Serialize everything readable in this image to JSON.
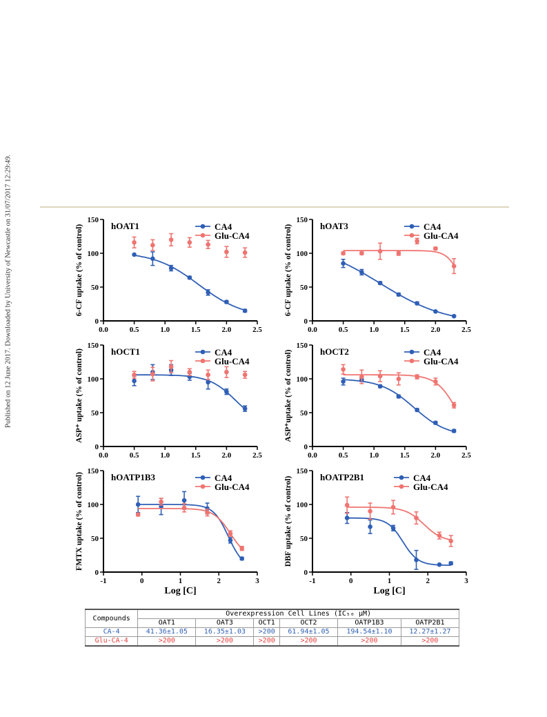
{
  "side_note": "Published on 12 June 2017. Downloaded by University of Newcastle on 31/07/2017 12:29:49.",
  "colors": {
    "ca4": "#2f5fb5",
    "glu": "#ef7470",
    "glu_text": "#e8423f",
    "divider": "#dcd6bd"
  },
  "chart_data": [
    {
      "type": "scatter",
      "title": "hOAT1",
      "ylabel": "6-CF uptake (% of control)",
      "xlabel": "",
      "xlim": [
        0,
        2.5
      ],
      "ylim": [
        0,
        150
      ],
      "xticks": [
        "0.0",
        "0.5",
        "1.0",
        "1.5",
        "2.0",
        "2.5"
      ],
      "yticks": [
        "0",
        "50",
        "100",
        "150"
      ],
      "legend_position": "top-right",
      "series": [
        {
          "name": "CA4",
          "x": [
            0.5,
            0.8,
            1.1,
            1.4,
            1.7,
            2.0,
            2.3
          ],
          "y": [
            98,
            92,
            78,
            64,
            42,
            28,
            15
          ],
          "err": [
            0,
            10,
            4,
            2,
            4,
            2,
            2
          ],
          "curve": true
        },
        {
          "name": "Glu-CA4",
          "x": [
            0.5,
            0.8,
            1.1,
            1.4,
            1.7,
            2.0,
            2.3
          ],
          "y": [
            116,
            112,
            120,
            116,
            113,
            102,
            101
          ],
          "err": [
            8,
            8,
            9,
            7,
            6,
            8,
            7
          ],
          "curve": false
        }
      ]
    },
    {
      "type": "scatter",
      "title": "hOAT3",
      "ylabel": "6-CF uptake (% of control)",
      "xlabel": "",
      "xlim": [
        0,
        2.5
      ],
      "ylim": [
        0,
        150
      ],
      "xticks": [
        "0.0",
        "0.5",
        "1.0",
        "1.5",
        "2.0",
        "2.5"
      ],
      "yticks": [
        "0",
        "50",
        "100",
        "150"
      ],
      "legend_position": "top-right",
      "series": [
        {
          "name": "CA4",
          "x": [
            0.5,
            0.8,
            1.1,
            1.4,
            1.7,
            2.0,
            2.3
          ],
          "y": [
            85,
            72,
            56,
            39,
            26,
            14,
            7
          ],
          "err": [
            6,
            4,
            2,
            2,
            2,
            1,
            1
          ],
          "curve": true
        },
        {
          "name": "Glu-CA4",
          "x": [
            0.5,
            0.8,
            1.1,
            1.4,
            1.7,
            2.0,
            2.3
          ],
          "y": [
            100,
            100,
            103,
            100,
            118,
            107,
            81
          ],
          "err": [
            2,
            2,
            12,
            3,
            4,
            2,
            11
          ],
          "curve": true
        }
      ]
    },
    {
      "type": "scatter",
      "title": "hOCT1",
      "ylabel": "ASP⁺ uptake (% of control)",
      "xlabel": "",
      "xlim": [
        0,
        2.5
      ],
      "ylim": [
        0,
        150
      ],
      "xticks": [
        "0.0",
        "0.5",
        "1.0",
        "1.5",
        "2.0",
        "2.5"
      ],
      "yticks": [
        "0",
        "50",
        "100",
        "150"
      ],
      "legend_position": "top-right",
      "series": [
        {
          "name": "CA4",
          "x": [
            0.5,
            0.8,
            1.1,
            1.4,
            1.7,
            2.0,
            2.3
          ],
          "y": [
            97,
            110,
            113,
            103,
            95,
            81,
            56
          ],
          "err": [
            7,
            11,
            8,
            5,
            10,
            4,
            4
          ],
          "curve": true
        },
        {
          "name": "Glu-CA4",
          "x": [
            0.5,
            0.8,
            1.1,
            1.4,
            1.7,
            2.0,
            2.3
          ],
          "y": [
            106,
            107,
            118,
            110,
            106,
            110,
            106
          ],
          "err": [
            5,
            10,
            9,
            5,
            7,
            8,
            5
          ],
          "curve": false
        }
      ]
    },
    {
      "type": "scatter",
      "title": "hOCT2",
      "ylabel": "ASP⁺uptake (% of control)",
      "xlabel": "",
      "xlim": [
        0,
        2.5
      ],
      "ylim": [
        0,
        150
      ],
      "xticks": [
        "0.0",
        "0.5",
        "1.0",
        "1.5",
        "2.0",
        "2.5"
      ],
      "yticks": [
        "0",
        "50",
        "100",
        "150"
      ],
      "legend_position": "top-right",
      "series": [
        {
          "name": "CA4",
          "x": [
            0.5,
            0.8,
            1.1,
            1.4,
            1.7,
            2.0,
            2.3
          ],
          "y": [
            96,
            99,
            89,
            74,
            54,
            35,
            23
          ],
          "err": [
            5,
            3,
            2,
            2,
            2,
            2,
            2
          ],
          "curve": true
        },
        {
          "name": "Glu-CA4",
          "x": [
            0.5,
            0.8,
            1.1,
            1.4,
            1.7,
            2.0,
            2.3
          ],
          "y": [
            114,
            103,
            104,
            100,
            103,
            96,
            61
          ],
          "err": [
            7,
            10,
            8,
            9,
            3,
            5,
            4
          ],
          "curve": true
        }
      ]
    },
    {
      "type": "scatter",
      "title": "hOATP1B3",
      "ylabel": "FMTX uptake (% of control)",
      "xlabel": "Log [C]",
      "xlim": [
        -1,
        3
      ],
      "ylim": [
        0,
        150
      ],
      "xticks": [
        "-1",
        "0",
        "1",
        "2",
        "3"
      ],
      "yticks": [
        "0",
        "50",
        "100",
        "150"
      ],
      "legend_position": "top-right",
      "series": [
        {
          "name": "CA4",
          "x": [
            -0.1,
            0.5,
            1.1,
            1.7,
            2.3,
            2.6
          ],
          "y": [
            100,
            97,
            106,
            94,
            47,
            20
          ],
          "err": [
            12,
            12,
            13,
            8,
            4,
            2
          ],
          "curve": true
        },
        {
          "name": "Glu-CA4",
          "x": [
            -0.1,
            0.5,
            1.1,
            1.7,
            2.3,
            2.6
          ],
          "y": [
            85,
            104,
            95,
            88,
            57,
            35
          ],
          "err": [
            2,
            5,
            6,
            5,
            4,
            3
          ],
          "curve": true
        }
      ]
    },
    {
      "type": "scatter",
      "title": "hOATP2B1",
      "ylabel": "DBF uptake (% of control)",
      "xlabel": "Log [C]",
      "xlim": [
        -1,
        3
      ],
      "ylim": [
        0,
        150
      ],
      "xticks": [
        "-1",
        "0",
        "1",
        "2",
        "3"
      ],
      "yticks": [
        "0",
        "50",
        "100",
        "150"
      ],
      "legend_position": "top-center",
      "series": [
        {
          "name": "CA4",
          "x": [
            -0.1,
            0.5,
            1.1,
            1.7,
            2.3,
            2.6
          ],
          "y": [
            80,
            67,
            65,
            18,
            11,
            13
          ],
          "err": [
            8,
            10,
            4,
            14,
            1,
            2
          ],
          "curve": true
        },
        {
          "name": "Glu-CA4",
          "x": [
            -0.1,
            0.5,
            1.1,
            1.7,
            2.3,
            2.6
          ],
          "y": [
            99,
            90,
            96,
            80,
            54,
            46
          ],
          "err": [
            12,
            12,
            10,
            9,
            5,
            8
          ],
          "curve": true
        }
      ]
    }
  ],
  "table": {
    "compounds_header": "Compounds",
    "group_header": "Overexpression Cell Lines (IC₅₀ μM)",
    "columns": [
      "OAT1",
      "OAT3",
      "OCT1",
      "OCT2",
      "OATP1B3",
      "OATP2B1"
    ],
    "rows": [
      {
        "compound": "CA-4",
        "values": [
          "41.36±1.05",
          "16.35±1.03",
          ">200",
          "61.94±1.05",
          "194.54±1.10",
          "12.27±1.27"
        ]
      },
      {
        "compound": "Glu-CA-4",
        "values": [
          ">200",
          ">200",
          ">200",
          ">200",
          ">200",
          ">200"
        ]
      }
    ]
  }
}
